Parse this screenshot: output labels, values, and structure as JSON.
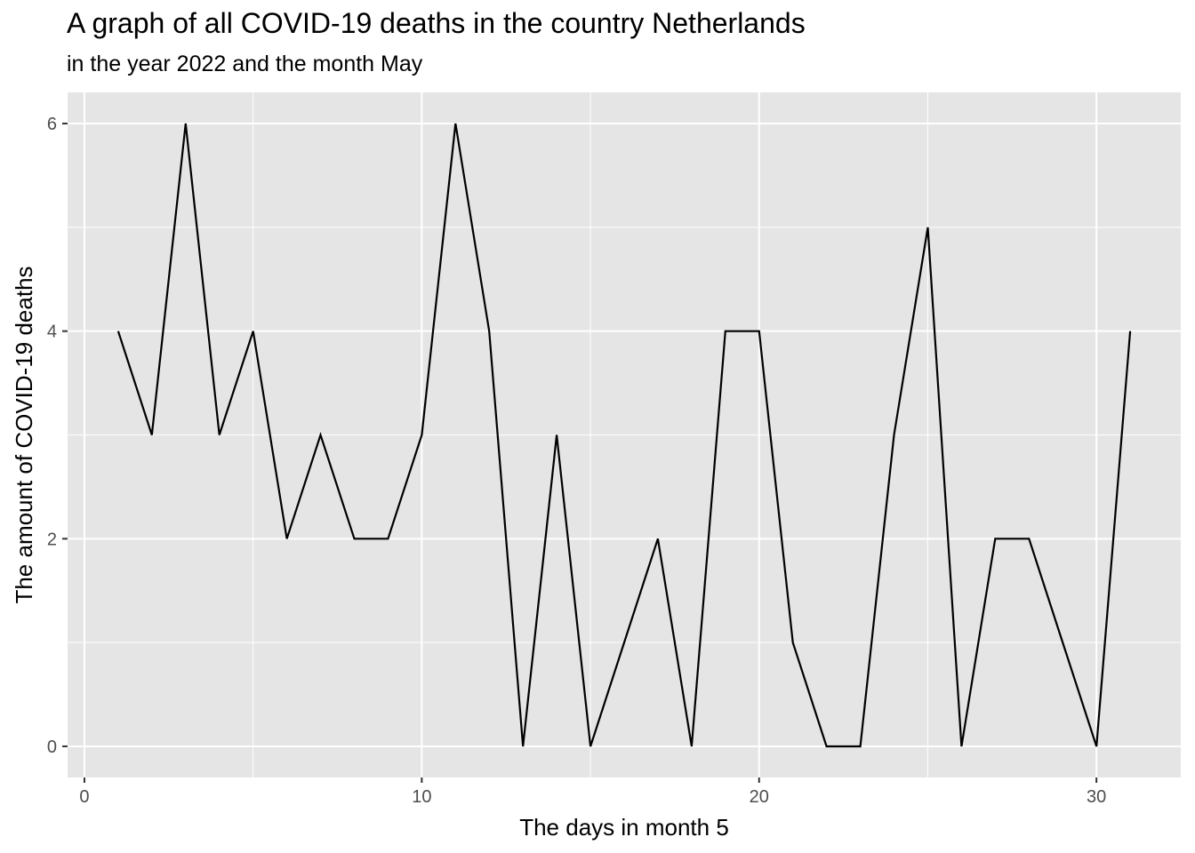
{
  "chart_data": {
    "type": "line",
    "title": "A graph of all COVID-19 deaths in the country Netherlands",
    "subtitle": "in the year 2022 and the month May",
    "xlabel": "The days in month 5",
    "ylabel": "The amount of COVID-19 deaths",
    "xlim": [
      -0.5,
      32.5
    ],
    "ylim": [
      -0.3,
      6.3
    ],
    "x_ticks": [
      0,
      10,
      20,
      30
    ],
    "y_ticks": [
      0,
      2,
      4,
      6
    ],
    "grid": true,
    "series": [
      {
        "x": [
          1,
          2,
          3,
          4,
          5,
          6,
          7,
          8,
          9,
          10,
          11,
          12,
          13,
          14,
          15,
          16,
          17,
          18,
          19,
          20,
          21,
          22,
          23,
          24,
          25,
          26,
          27,
          28,
          29,
          30,
          31
        ],
        "values": [
          4,
          3,
          6,
          3,
          4,
          2,
          3,
          2,
          2,
          3,
          6,
          4,
          0,
          3,
          0,
          1,
          2,
          0,
          4,
          4,
          1,
          0,
          0,
          3,
          5,
          0,
          2,
          2,
          1,
          0,
          4
        ]
      }
    ],
    "colors": {
      "panel": "#e5e5e5",
      "grid": "#ffffff",
      "line": "#000000"
    }
  }
}
